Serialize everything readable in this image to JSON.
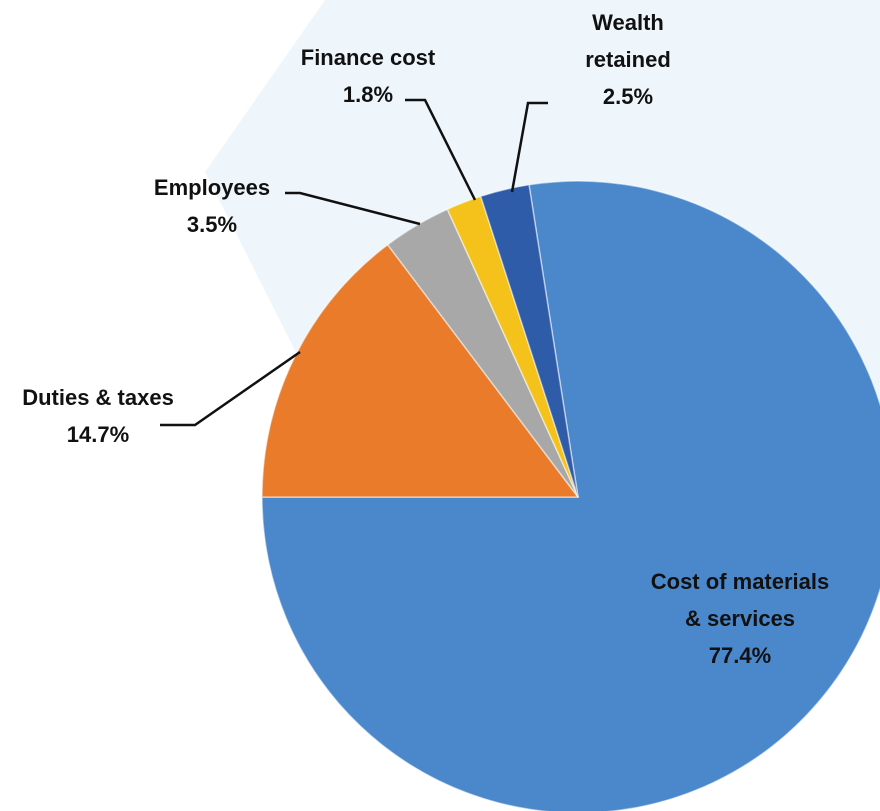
{
  "chart_data": {
    "type": "pie",
    "categories": [
      "Cost of materials & services",
      "Duties & taxes",
      "Employees",
      "Finance cost",
      "Wealth retained"
    ],
    "values": [
      77.4,
      14.7,
      3.5,
      1.8,
      2.5
    ],
    "value_labels": [
      "77.4%",
      "14.7%",
      "3.5%",
      "1.8%",
      "2.5%"
    ],
    "colors": [
      "#4a88cb",
      "#e97b2b",
      "#a8a8a8",
      "#f4c21a",
      "#2f5ca9"
    ]
  }
}
